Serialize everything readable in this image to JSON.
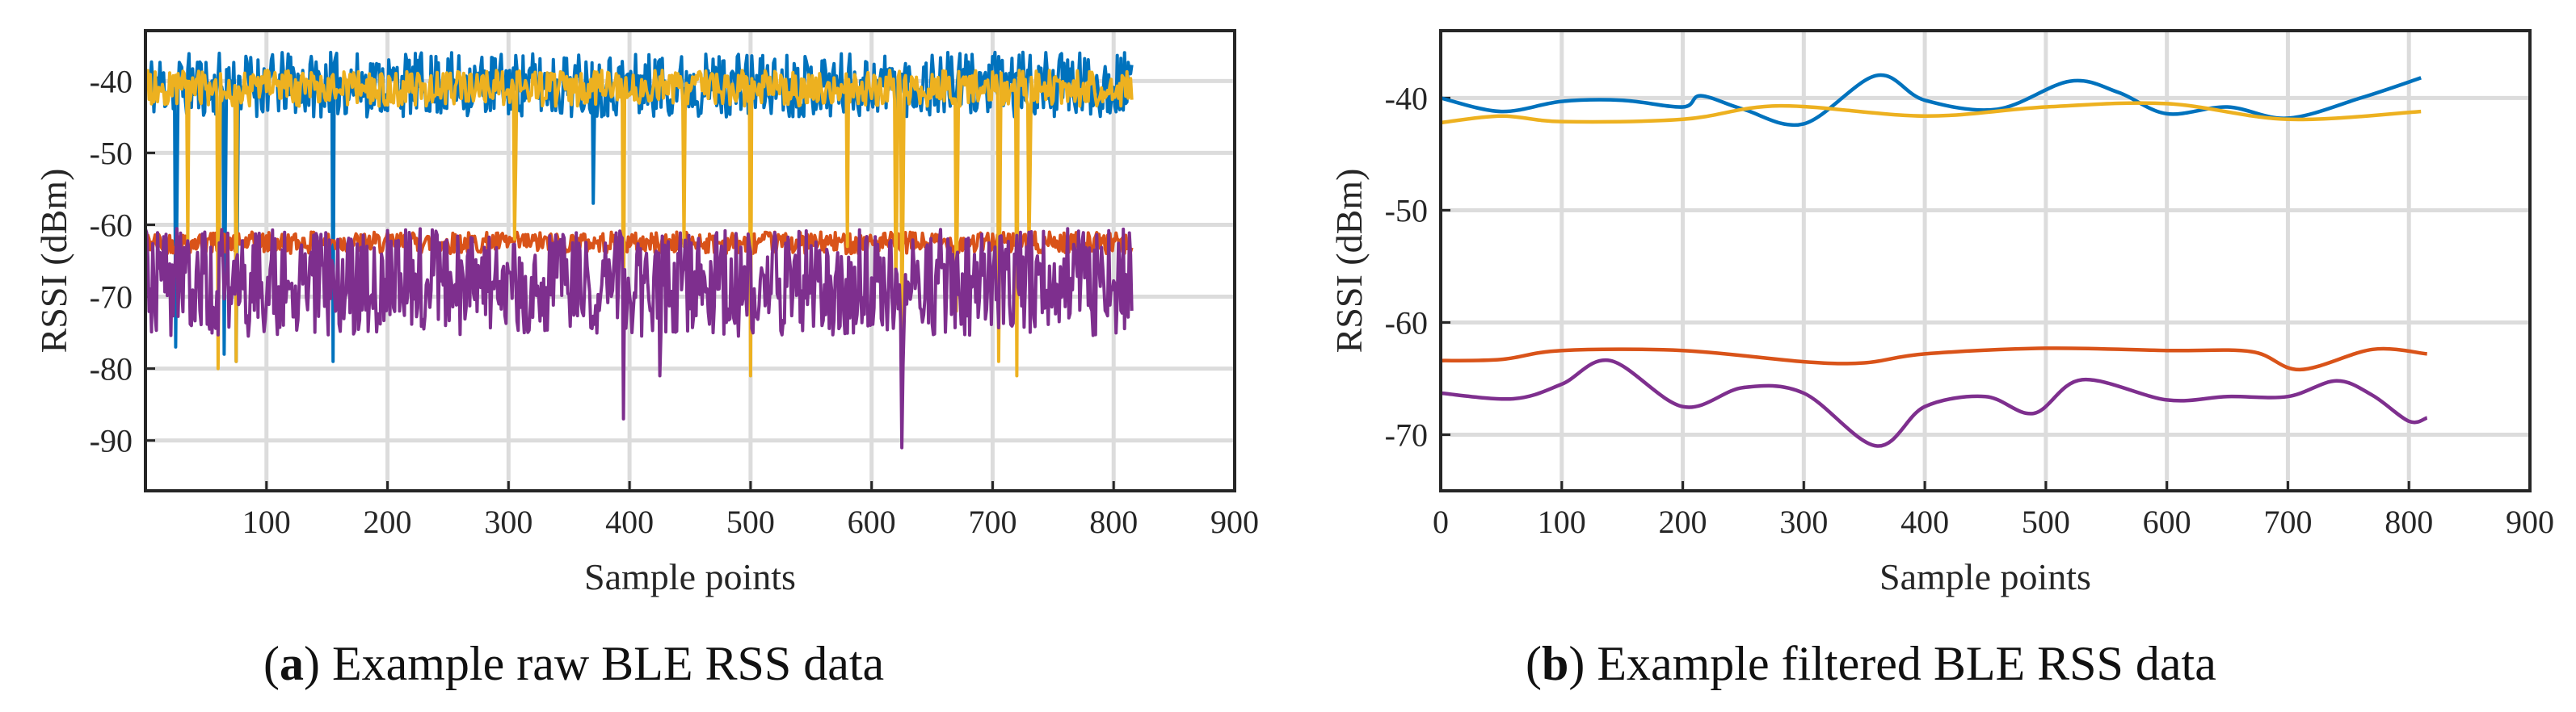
{
  "colors": {
    "blue": "#0072BD",
    "orange": "#D95319",
    "yellow": "#EDB120",
    "purple": "#7E2F8E",
    "grid": "#dcdcdc",
    "axes": "#262626"
  },
  "captions": {
    "a": {
      "letter": "a",
      "text": "Example raw BLE RSS data"
    },
    "b": {
      "letter": "b",
      "text": "Example filtered BLE RSS data"
    }
  },
  "chart_data": [
    {
      "type": "line",
      "xlabel": "Sample points",
      "ylabel": "RSSI (dBm)",
      "xlim": [
        0,
        900
      ],
      "ylim": [
        -97,
        -33
      ],
      "xticks": [
        100,
        200,
        300,
        400,
        500,
        600,
        700,
        800,
        900
      ],
      "yticks": [
        -40,
        -50,
        -60,
        -70,
        -80,
        -90
      ],
      "grid": true,
      "series": [
        {
          "color": "#0072BD",
          "style": "raw",
          "base": -40.5,
          "noise": 4.5,
          "x_end": 815,
          "x": [
            0,
            20,
            25,
            55,
            65,
            75,
            80,
            150,
            155,
            365,
            370
          ],
          "y": [
            -40,
            -41,
            -77,
            -40,
            -78,
            -79,
            -41,
            -41,
            -79,
            -40,
            -57
          ]
        },
        {
          "color": "#D95319",
          "style": "raw",
          "base": -62.5,
          "noise": 1.5,
          "x_end": 815,
          "x": [
            0,
            140,
            400,
            800
          ],
          "y": [
            -62,
            -71,
            -63,
            -62
          ]
        },
        {
          "color": "#EDB120",
          "style": "raw",
          "base": -41,
          "noise": 2.5,
          "x_end": 815,
          "x": [
            35,
            60,
            75,
            305,
            395,
            445,
            500,
            580,
            620,
            625,
            670,
            705,
            720,
            730
          ],
          "y": [
            -63,
            -80,
            -79,
            -62,
            -79,
            -63,
            -81,
            -63,
            -71,
            -75,
            -72,
            -79,
            -81,
            -64
          ]
        },
        {
          "color": "#7E2F8E",
          "style": "raw",
          "base": -68,
          "noise": 7.5,
          "x_end": 815,
          "x": [
            395,
            425,
            625
          ],
          "y": [
            -87,
            -81,
            -91
          ]
        }
      ]
    },
    {
      "type": "line",
      "xlabel": "Sample points",
      "ylabel": "RSSI (dBm)",
      "xlim": [
        0,
        900
      ],
      "ylim": [
        -75,
        -34
      ],
      "xticks": [
        0,
        100,
        200,
        300,
        400,
        500,
        600,
        700,
        800,
        900
      ],
      "yticks": [
        -40,
        -50,
        -60,
        -70
      ],
      "grid": true,
      "series": [
        {
          "color": "#0072BD",
          "x": [
            0,
            50,
            100,
            150,
            200,
            215,
            250,
            300,
            360,
            400,
            460,
            520,
            560,
            600,
            650,
            700,
            760,
            810
          ],
          "y": [
            -40,
            -41.2,
            -40.3,
            -40.2,
            -40.8,
            -39.8,
            -41,
            -42.3,
            -38,
            -40.2,
            -41,
            -38.5,
            -39.5,
            -41.4,
            -40.8,
            -41.8,
            -40,
            -38.2
          ]
        },
        {
          "color": "#EDB120",
          "x": [
            0,
            50,
            100,
            200,
            280,
            400,
            500,
            600,
            700,
            810
          ],
          "y": [
            -42.2,
            -41.6,
            -42.1,
            -41.9,
            -40.7,
            -41.6,
            -40.8,
            -40.5,
            -41.9,
            -41.2
          ]
        },
        {
          "color": "#D95319",
          "x": [
            0,
            50,
            100,
            200,
            300,
            350,
            400,
            500,
            600,
            670,
            710,
            770,
            815
          ],
          "y": [
            -63.4,
            -63.3,
            -62.5,
            -62.5,
            -63.5,
            -63.6,
            -62.8,
            -62.3,
            -62.5,
            -62.6,
            -64.2,
            -62.4,
            -62.8
          ]
        },
        {
          "color": "#7E2F8E",
          "x": [
            0,
            60,
            100,
            140,
            200,
            250,
            300,
            360,
            400,
            450,
            490,
            530,
            600,
            650,
            700,
            740,
            770,
            800,
            815
          ],
          "y": [
            -66.3,
            -66.8,
            -65.5,
            -63.4,
            -67.5,
            -65.8,
            -66.3,
            -71,
            -67.5,
            -66.6,
            -68.1,
            -65.1,
            -66.9,
            -66.6,
            -66.6,
            -65.2,
            -66.5,
            -68.8,
            -68.5
          ]
        }
      ]
    }
  ]
}
